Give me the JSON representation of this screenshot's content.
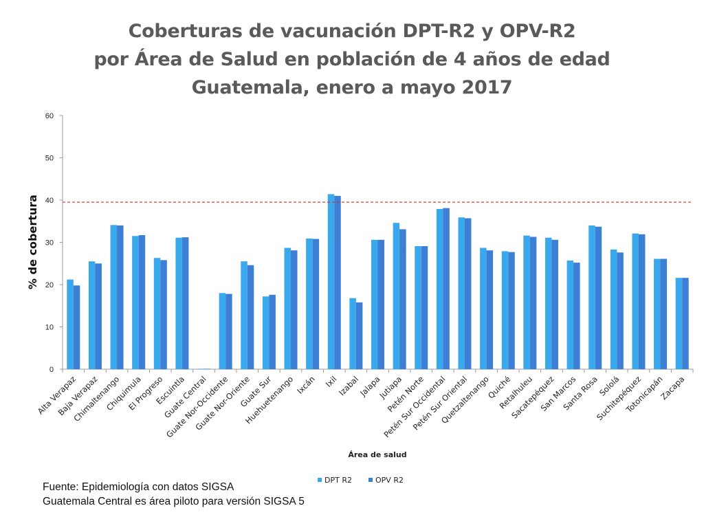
{
  "chart_data": {
    "type": "bar",
    "title_lines": [
      "Coberturas de vacunación DPT-R2 y OPV-R2",
      "por Área de Salud en población de 4 años de edad",
      "Guatemala, enero a mayo 2017"
    ],
    "xlabel": "Área de salud",
    "ylabel": "% de cobertura",
    "ylim": [
      0,
      60
    ],
    "yticks": [
      0,
      10,
      20,
      30,
      40,
      50,
      60
    ],
    "reference_line": 39.5,
    "legend_position": "bottom",
    "categories": [
      "Alta Verapaz",
      "Baja Verapaz",
      "Chimaltenango",
      "Chiquimula",
      "El Progreso",
      "Escuintla",
      "Guate Central",
      "Guate Nor-Occidente",
      "Guate Nor-Oriente",
      "Guate Sur",
      "Huehuetenango",
      "Ixcán",
      "Ixil",
      "Izabal",
      "Jalapa",
      "Jutiapa",
      "Petén Norte",
      "Petén Sur Occidental",
      "Petén Sur Oriental",
      "Quetzaltenango",
      "Quiché",
      "Retalhuleu",
      "Sacatepéquez",
      "San Marcos",
      "Santa Rosa",
      "Sololá",
      "Suchitepéquez",
      "Totonicapán",
      "Zacapa"
    ],
    "series": [
      {
        "name": "DPT R2",
        "color": "#3aa8ec",
        "values": [
          21.2,
          25.5,
          34.1,
          31.5,
          26.3,
          31.1,
          0.1,
          18.0,
          25.5,
          17.2,
          28.7,
          30.9,
          41.4,
          16.8,
          30.6,
          34.6,
          29.1,
          37.9,
          35.9,
          28.7,
          27.9,
          31.6,
          31.1,
          25.7,
          34.0,
          28.3,
          32.1,
          26.1,
          21.6
        ]
      },
      {
        "name": "OPV R2",
        "color": "#3d7fd4",
        "values": [
          19.8,
          25.0,
          34.0,
          31.7,
          25.8,
          31.2,
          0.1,
          17.8,
          24.6,
          17.6,
          28.1,
          30.8,
          41.0,
          15.8,
          30.6,
          33.1,
          29.1,
          38.1,
          35.7,
          28.1,
          27.7,
          31.3,
          30.6,
          25.2,
          33.7,
          27.6,
          31.9,
          26.1,
          21.6
        ]
      }
    ]
  },
  "notes": {
    "source": "Fuente: Epidemiología con datos SIGSA",
    "pilot": "Guatemala Central es  área piloto para versión SIGSA 5"
  }
}
